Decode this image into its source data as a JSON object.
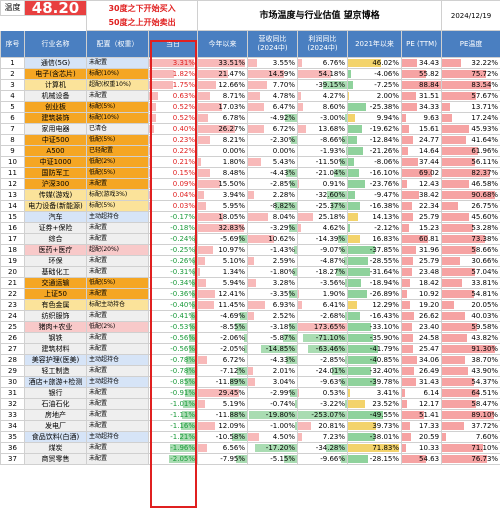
{
  "header": {
    "temp_label": "温度",
    "temp_value": "48.20",
    "note_line1": "30度之下开始买入",
    "note_line2": "50度之上开始卖出",
    "title": "市场温度与行业估值 望京博格",
    "date": "2024/12/19"
  },
  "columns": [
    "序号",
    "行业名称",
    "配置（权重）",
    "当日",
    "今年以来",
    "营收同比\n(2024中)",
    "利润同比\n(2024中)",
    "2021年以来",
    "PE\n(TTM)",
    "PE温度"
  ],
  "colors": {
    "header_bg": "#4a7fc1",
    "temp_bg": "#e84040",
    "pos_text": "#e02020",
    "neg_text": "#1a9a3a",
    "frame": "#e02020",
    "row_gray": "#efefef",
    "row_orange": "#f5a623",
    "row_yellow": "#fbe39a",
    "row_pink": "#f8c9c9",
    "row_blue": "#d6e4f7"
  },
  "rows": [
    {
      "idx": "1",
      "name": "通信(5G)",
      "cfg": "未配置",
      "day": "3.31%",
      "ytd": "33.51%",
      "rev": "3.55%",
      "profit": "6.76%",
      "since21": "46.02%",
      "pe": "34.43",
      "pet": "32.22%",
      "hl": "blue"
    },
    {
      "idx": "2",
      "name": "电子(含芯片)",
      "cfg": "标配(10%)",
      "day": "1.82%",
      "ytd": "21.47%",
      "rev": "14.59%",
      "profit": "54.18%",
      "since21": "-4.06%",
      "pe": "55.82",
      "pet": "75.72%",
      "hl": "orange"
    },
    {
      "idx": "3",
      "name": "计算机",
      "cfg": "超配(权重10%)",
      "day": "1.75%",
      "ytd": "12.66%",
      "rev": "7.70%",
      "profit": "-39.15%",
      "since21": "-7.25%",
      "pe": "88.84",
      "pet": "83.54%",
      "hl": "yellow"
    },
    {
      "idx": "4",
      "name": "机械设备",
      "cfg": "未配置",
      "day": "0.63%",
      "ytd": "8.71%",
      "rev": "4.78%",
      "profit": "4.27%",
      "since21": "2.00%",
      "pe": "31.51",
      "pet": "57.67%",
      "hl": "gray"
    },
    {
      "idx": "5",
      "name": "创业板",
      "cfg": "标配(5%)",
      "day": "0.52%",
      "ytd": "17.03%",
      "rev": "6.47%",
      "profit": "8.60%",
      "since21": "-25.38%",
      "pe": "34.33",
      "pet": "13.71%",
      "hl": "orange"
    },
    {
      "idx": "6",
      "name": "建筑装饰",
      "cfg": "标配(10%)",
      "day": "0.52%",
      "ytd": "6.78%",
      "rev": "-4.92%",
      "profit": "-3.00%",
      "since21": "9.94%",
      "pe": "9.63",
      "pet": "17.24%",
      "hl": "orange"
    },
    {
      "idx": "7",
      "name": "家用电器",
      "cfg": "已清仓",
      "day": "0.40%",
      "ytd": "26.27%",
      "rev": "6.72%",
      "profit": "13.68%",
      "since21": "-19.62%",
      "pe": "15.61",
      "pet": "45.93%",
      "hl": "gray"
    },
    {
      "idx": "8",
      "name": "中证500",
      "cfg": "低配(5%)",
      "day": "0.23%",
      "ytd": "8.21%",
      "rev": "-2.30%",
      "profit": "-8.66%",
      "since21": "-12.84%",
      "pe": "24.77",
      "pet": "41.64%",
      "hl": "orange"
    },
    {
      "idx": "9",
      "name": "A500",
      "cfg": "已轻配置",
      "day": "0.22%",
      "ytd": "0.00%",
      "rev": "0.00%",
      "profit": "-1.93%",
      "since21": "-21.26%",
      "pe": "14.64",
      "pet": "61.96%",
      "hl": "orange"
    },
    {
      "idx": "10",
      "name": "中证1000",
      "cfg": "低配(2%)",
      "day": "0.21%",
      "ytd": "1.80%",
      "rev": "5.43%",
      "profit": "-11.50%",
      "since21": "-8.06%",
      "pe": "37.44",
      "pet": "56.11%",
      "hl": "orange"
    },
    {
      "idx": "11",
      "name": "国防军工",
      "cfg": "低配(5%)",
      "day": "0.15%",
      "ytd": "8.48%",
      "rev": "-4.43%",
      "profit": "-21.04%",
      "since21": "-16.10%",
      "pe": "69.02",
      "pet": "82.37%",
      "hl": "orange"
    },
    {
      "idx": "12",
      "name": "沪深300",
      "cfg": "未配置",
      "day": "0.09%",
      "ytd": "15.50%",
      "rev": "-2.85%",
      "profit": "0.91%",
      "since21": "-23.76%",
      "pe": "12.43",
      "pet": "46.58%",
      "hl": "orange"
    },
    {
      "idx": "13",
      "name": "传媒(游戏)",
      "cfg": "标配(游戏3%)",
      "day": "0.04%",
      "ytd": "3.94%",
      "rev": "2.28%",
      "profit": "-32.60%",
      "since21": "-9.47%",
      "pe": "38.42",
      "pet": "90.68%",
      "hl": "yellow"
    },
    {
      "idx": "14",
      "name": "电力设备(新能源)",
      "cfg": "标配(5%)",
      "day": "0.03%",
      "ytd": "5.95%",
      "rev": "-8.82%",
      "profit": "-25.37%",
      "since21": "-16.38%",
      "pe": "22.34",
      "pet": "26.75%",
      "hl": "yellow"
    },
    {
      "idx": "15",
      "name": "汽车",
      "cfg": "主动超持仓",
      "day": "-0.17%",
      "ytd": "18.05%",
      "rev": "8.04%",
      "profit": "25.18%",
      "since21": "14.13%",
      "pe": "25.79",
      "pet": "45.60%",
      "hl": "blue"
    },
    {
      "idx": "16",
      "name": "证券+保险",
      "cfg": "未配置",
      "day": "-0.18%",
      "ytd": "32.83%",
      "rev": "-3.29%",
      "profit": "4.62%",
      "since21": "-2.12%",
      "pe": "15.23",
      "pet": "53.28%",
      "hl": "gray"
    },
    {
      "idx": "17",
      "name": "综合",
      "cfg": "未配置",
      "day": "-0.24%",
      "ytd": "-5.69%",
      "rev": "10.62%",
      "profit": "-14.39%",
      "since21": "16.83%",
      "pe": "60.81",
      "pet": "73.38%",
      "hl": "gray"
    },
    {
      "idx": "18",
      "name": "医药+医疗",
      "cfg": "超配(20%)",
      "day": "-0.25%",
      "ytd": "10.97%",
      "rev": "-1.43%",
      "profit": "-9.07%",
      "since21": "-37.85%",
      "pe": "31.96",
      "pet": "58.66%",
      "hl": "pink"
    },
    {
      "idx": "19",
      "name": "环保",
      "cfg": "未配置",
      "day": "-0.26%",
      "ytd": "5.10%",
      "rev": "2.59%",
      "profit": "-4.87%",
      "since21": "-28.55%",
      "pe": "25.79",
      "pet": "30.66%",
      "hl": "gray"
    },
    {
      "idx": "20",
      "name": "基础化工",
      "cfg": "未配置",
      "day": "-0.31%",
      "ytd": "1.34%",
      "rev": "-1.80%",
      "profit": "-18.27%",
      "since21": "-31.64%",
      "pe": "23.48",
      "pet": "57.04%",
      "hl": "gray"
    },
    {
      "idx": "21",
      "name": "交通运输",
      "cfg": "低配(5%)",
      "day": "-0.34%",
      "ytd": "5.94%",
      "rev": "3.28%",
      "profit": "-3.56%",
      "since21": "-18.94%",
      "pe": "18.42",
      "pet": "33.81%",
      "hl": "orange"
    },
    {
      "idx": "22",
      "name": "上证50",
      "cfg": "未配置",
      "day": "-0.36%",
      "ytd": "12.41%",
      "rev": "-3.35%",
      "profit": "1.90%",
      "since21": "-26.89%",
      "pe": "10.92",
      "pet": "54.81%",
      "hl": "orange"
    },
    {
      "idx": "23",
      "name": "有色金属",
      "cfg": "标配主动持仓",
      "day": "-0.40%",
      "ytd": "11.45%",
      "rev": "6.93%",
      "profit": "6.41%",
      "since21": "12.29%",
      "pe": "19.20",
      "pet": "20.05%",
      "hl": "yellow"
    },
    {
      "idx": "24",
      "name": "纺织服饰",
      "cfg": "未配置",
      "day": "-0.41%",
      "ytd": "-4.69%",
      "rev": "2.52%",
      "profit": "-2.68%",
      "since21": "-16.43%",
      "pe": "26.62",
      "pet": "40.03%",
      "hl": "gray"
    },
    {
      "idx": "25",
      "name": "猪肉+农业",
      "cfg": "低配(2%)",
      "day": "-0.53%",
      "ytd": "-8.55%",
      "rev": "-3.18%",
      "profit": "173.65%",
      "since21": "-33.10%",
      "pe": "23.40",
      "pet": "59.58%",
      "hl": "pink"
    },
    {
      "idx": "26",
      "name": "钢铁",
      "cfg": "未配置",
      "day": "-0.56%",
      "ytd": "-2.06%",
      "rev": "-5.87%",
      "profit": "-71.10%",
      "since21": "-35.90%",
      "pe": "24.58",
      "pet": "43.82%",
      "hl": "gray"
    },
    {
      "idx": "27",
      "name": "建筑材料",
      "cfg": "未配置",
      "day": "-0.56%",
      "ytd": "-2.05%",
      "rev": "-14.85%",
      "profit": "-63.46%",
      "since21": "-41.79%",
      "pe": "25.47",
      "pet": "91.30%",
      "hl": "gray"
    },
    {
      "idx": "28",
      "name": "美容护理(医美)",
      "cfg": "主动超持仓",
      "day": "-0.78%",
      "ytd": "6.72%",
      "rev": "-4.33%",
      "profit": "-2.85%",
      "since21": "-40.85%",
      "pe": "34.06",
      "pet": "38.70%",
      "hl": "blue"
    },
    {
      "idx": "29",
      "name": "轻工制造",
      "cfg": "未配置",
      "day": "-0.78%",
      "ytd": "-7.12%",
      "rev": "2.01%",
      "profit": "-24.01%",
      "since21": "-32.40%",
      "pe": "26.49",
      "pet": "43.90%",
      "hl": "gray"
    },
    {
      "idx": "30",
      "name": "酒店+旅游+检测",
      "cfg": "主动超持仓",
      "day": "-0.85%",
      "ytd": "-11.89%",
      "rev": "3.04%",
      "profit": "-9.63%",
      "since21": "-39.78%",
      "pe": "31.43",
      "pet": "54.37%",
      "hl": "blue"
    },
    {
      "idx": "31",
      "name": "银行",
      "cfg": "未配置",
      "day": "-0.91%",
      "ytd": "29.45%",
      "rev": "-2.99%",
      "profit": "0.53%",
      "since21": "3.41%",
      "pe": "6.14",
      "pet": "64.51%",
      "hl": "gray"
    },
    {
      "idx": "32",
      "name": "石油石化",
      "cfg": "未配置",
      "day": "-1.01%",
      "ytd": "5.19%",
      "rev": "-0.74%",
      "profit": "-3.22%",
      "since21": "23.52%",
      "pe": "12.17",
      "pet": "58.47%",
      "hl": "gray"
    },
    {
      "idx": "33",
      "name": "房地产",
      "cfg": "未配置",
      "day": "-1.11%",
      "ytd": "-11.88%",
      "rev": "-19.80%",
      "profit": "-253.07%",
      "since21": "-49.55%",
      "pe": "51.41",
      "pet": "89.10%",
      "hl": "gray"
    },
    {
      "idx": "34",
      "name": "发电厂",
      "cfg": "未配置",
      "day": "-1.16%",
      "ytd": "12.09%",
      "rev": "-1.00%",
      "profit": "20.81%",
      "since21": "39.73%",
      "pe": "17.33",
      "pet": "37.72%",
      "hl": "gray"
    },
    {
      "idx": "35",
      "name": "食品饮料(白酒)",
      "cfg": "主动超持仓",
      "day": "-1.21%",
      "ytd": "-10.58%",
      "rev": "4.50%",
      "profit": "7.23%",
      "since21": "-38.01%",
      "pe": "20.59",
      "pet": "7.60%",
      "hl": "blue"
    },
    {
      "idx": "36",
      "name": "煤炭",
      "cfg": "未配置",
      "day": "-1.96%",
      "ytd": "6.56%",
      "rev": "-17.20%",
      "profit": "-34.28%",
      "since21": "71.83%",
      "pe": "10.33",
      "pet": "71.10%",
      "hl": "gray"
    },
    {
      "idx": "37",
      "name": "商贸零售",
      "cfg": "未配置",
      "day": "-2.05%",
      "ytd": "-7.95%",
      "rev": "-5.15%",
      "profit": "-9.66%",
      "since21": "-28.15%",
      "pe": "54.63",
      "pet": "76.73%",
      "hl": "gray"
    }
  ]
}
